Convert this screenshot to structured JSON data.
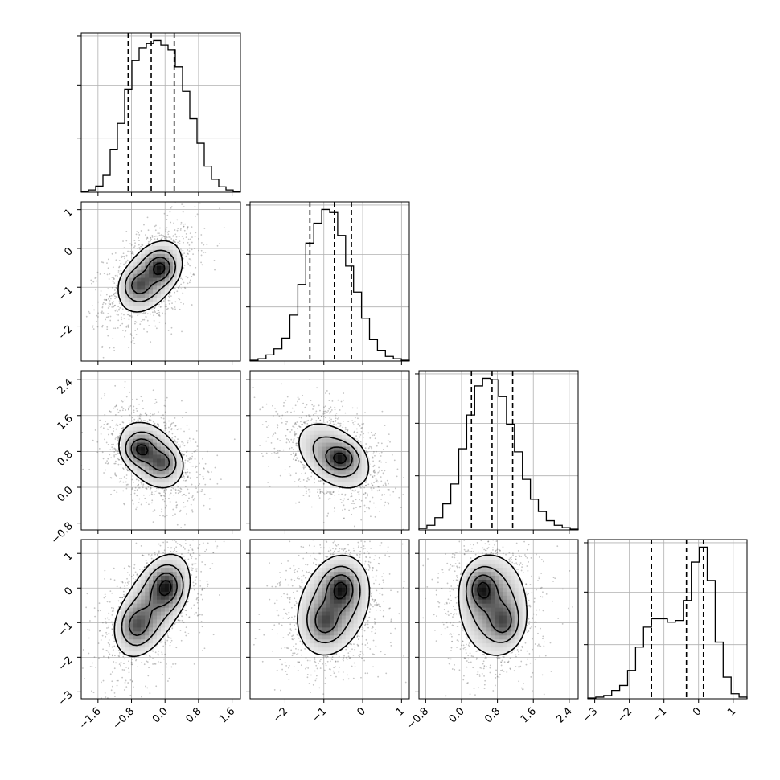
{
  "chart_data": {
    "type": "corner",
    "title": "",
    "dimensions": 4,
    "levels_sigma": [
      0.5,
      1.0,
      1.5,
      2.0
    ],
    "quantiles": [
      0.16,
      0.5,
      0.84
    ],
    "params": [
      {
        "index": 0,
        "range": [
          -2.0,
          1.8
        ],
        "ticks": [
          -1.6,
          -0.8,
          0.0,
          0.8,
          1.6
        ],
        "tick_labels": [
          "−1.6",
          "−0.8",
          "0.0",
          "0.8",
          "1.6"
        ],
        "quantile_values": [
          -0.88,
          -0.33,
          0.22
        ],
        "hist_counts": [
          0.5,
          1.5,
          4,
          11,
          28,
          45,
          67,
          86,
          94,
          97,
          99,
          96,
          93,
          82,
          66,
          48,
          32,
          17,
          8.5,
          3.5,
          1.5,
          0.5
        ]
      },
      {
        "index": 1,
        "range": [
          -2.9,
          1.2
        ],
        "ticks": [
          -2,
          -1,
          0,
          1
        ],
        "tick_labels": [
          "−2",
          "−1",
          "0",
          "1"
        ],
        "quantile_values": [
          -1.36,
          -0.73,
          -0.29
        ],
        "hist_counts": [
          0.5,
          1.5,
          4,
          8,
          15,
          30,
          50,
          77,
          90,
          99,
          97,
          82,
          62,
          45,
          28,
          14,
          7,
          3,
          1.5,
          0.5
        ]
      },
      {
        "index": 2,
        "range": [
          -0.95,
          2.6
        ],
        "ticks": [
          -0.8,
          0.0,
          0.8,
          1.6,
          2.4
        ],
        "tick_labels": [
          "−0.8",
          "0.0",
          "0.8",
          "1.6",
          "2.4"
        ],
        "quantile_values": [
          0.22,
          0.68,
          1.14
        ],
        "hist_counts": [
          1,
          3,
          8,
          17,
          30,
          53,
          75,
          94,
          99,
          98,
          87,
          69,
          51,
          33,
          20,
          12,
          6,
          3,
          1.5,
          0.5
        ]
      },
      {
        "index": 3,
        "range": [
          -3.2,
          1.4
        ],
        "ticks": [
          -3,
          -2,
          -1,
          0,
          1
        ],
        "tick_labels": [
          "−3",
          "−2",
          "−1",
          "0",
          "1"
        ],
        "quantile_values": [
          -1.36,
          -0.35,
          0.14
        ],
        "hist_counts": [
          0.5,
          1,
          2,
          5,
          8,
          17,
          31,
          43,
          48,
          48,
          46,
          47,
          59,
          82,
          91,
          71,
          34,
          13,
          3,
          1
        ]
      }
    ],
    "pairs": [
      {
        "name": "y1-x0",
        "mean": [
          -0.35,
          -0.72
        ],
        "std": [
          0.44,
          0.55
        ],
        "corr": 0.45,
        "n_scatter": 1300,
        "density_peaks": [
          [
            -0.1,
            -0.5
          ],
          [
            -0.65,
            -0.95
          ]
        ]
      },
      {
        "name": "y2-x0",
        "mean": [
          -0.33,
          0.72
        ],
        "std": [
          0.44,
          0.44
        ],
        "corr": -0.38,
        "n_scatter": 1300,
        "density_peaks": [
          [
            -0.6,
            0.85
          ],
          [
            -0.05,
            0.55
          ]
        ]
      },
      {
        "name": "y2-x1",
        "mean": [
          -0.75,
          0.7
        ],
        "std": [
          0.55,
          0.44
        ],
        "corr": -0.42,
        "n_scatter": 1300,
        "density_peaks": [
          [
            -0.55,
            0.65
          ]
        ]
      },
      {
        "name": "y3-x0",
        "mean": [
          -0.3,
          -0.5
        ],
        "std": [
          0.5,
          0.85
        ],
        "corr": 0.55,
        "n_scatter": 1300,
        "density_peaks": [
          [
            0.05,
            0.05
          ],
          [
            -0.7,
            -1.1
          ]
        ]
      },
      {
        "name": "y3-x1",
        "mean": [
          -0.75,
          -0.5
        ],
        "std": [
          0.55,
          0.85
        ],
        "corr": 0.25,
        "n_scatter": 1300,
        "density_peaks": [
          [
            -0.55,
            0.0
          ],
          [
            -1.0,
            -1.0
          ]
        ]
      },
      {
        "name": "y3-x2",
        "mean": [
          0.7,
          -0.5
        ],
        "std": [
          0.44,
          0.85
        ],
        "corr": -0.05,
        "n_scatter": 1300,
        "density_peaks": [
          [
            0.45,
            0.0
          ],
          [
            0.95,
            -1.0
          ]
        ]
      }
    ]
  }
}
